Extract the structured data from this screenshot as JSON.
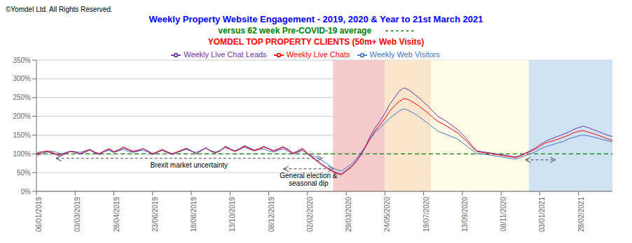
{
  "chart_data": {
    "type": "line",
    "titles": [
      {
        "text": "Weekly Property Website Engagement - 2019, 2020 & Year to 21st March 2021",
        "color": "blue"
      },
      {
        "text": "versus 62 week Pre-COVID-19 average      - - - - - -",
        "color": "green"
      },
      {
        "text": "YOMDEL TOP PROPERTY CLIENTS (50m+ Web Visits)",
        "color": "red"
      }
    ],
    "copyright": "©Yomdel Ltd. All Rights Reserved.",
    "categories": [
      "06/01/2019",
      null,
      null,
      null,
      null,
      null,
      null,
      null,
      "03/03/2019",
      null,
      null,
      null,
      null,
      null,
      null,
      null,
      "28/04/2019",
      null,
      null,
      null,
      null,
      null,
      null,
      null,
      "23/06/2019",
      null,
      null,
      null,
      null,
      null,
      null,
      null,
      "18/08/2019",
      null,
      null,
      null,
      null,
      null,
      null,
      null,
      "13/10/2019",
      null,
      null,
      null,
      null,
      null,
      null,
      null,
      "08/12/2019",
      null,
      null,
      null,
      null,
      null,
      null,
      null,
      "02/02/2020",
      null,
      null,
      null,
      null,
      null,
      null,
      null,
      "29/03/2020",
      null,
      null,
      null,
      null,
      null,
      null,
      null,
      "24/05/2020",
      null,
      null,
      null,
      null,
      null,
      null,
      null,
      "19/07/2020",
      null,
      null,
      null,
      null,
      null,
      null,
      null,
      "13/09/2020",
      null,
      null,
      null,
      null,
      null,
      null,
      null,
      "08/11/2020",
      null,
      null,
      null,
      null,
      null,
      null,
      null,
      "03/01/2021",
      null,
      null,
      null,
      null,
      null,
      null,
      null,
      "28/02/2021",
      null,
      null,
      null,
      null,
      null,
      null,
      null
    ],
    "series": [
      {
        "name": "Weekly Web Visitors",
        "color": "#4472C4",
        "values": [
          102,
          106,
          104,
          108,
          105,
          100,
          103,
          107,
          106,
          104,
          108,
          111,
          104,
          101,
          106,
          109,
          104,
          108,
          112,
          106,
          104,
          107,
          110,
          105,
          101,
          105,
          109,
          103,
          100,
          104,
          108,
          112,
          107,
          104,
          110,
          115,
          108,
          105,
          110,
          117,
          112,
          108,
          112,
          118,
          112,
          108,
          112,
          113,
          108,
          105,
          109,
          113,
          107,
          100,
          104,
          109,
          100,
          95,
          90,
          82,
          74,
          64,
          58,
          54,
          63,
          72,
          85,
          102,
          120,
          140,
          158,
          170,
          182,
          195,
          205,
          215,
          220,
          215,
          208,
          200,
          190,
          180,
          170,
          160,
          155,
          150,
          145,
          140,
          130,
          120,
          110,
          100,
          100,
          98,
          96,
          94,
          92,
          90,
          88,
          86,
          90,
          95,
          100,
          105,
          112,
          118,
          122,
          126,
          130,
          134,
          140,
          144,
          148,
          150,
          148,
          145,
          142,
          138,
          135,
          132
        ]
      },
      {
        "name": "Weekly Live Chats",
        "color": "#FF0000",
        "values": [
          100,
          104,
          108,
          105,
          100,
          97,
          102,
          107,
          105,
          100,
          106,
          112,
          105,
          100,
          108,
          114,
          106,
          111,
          118,
          112,
          107,
          110,
          114,
          108,
          100,
          106,
          112,
          106,
          100,
          105,
          110,
          115,
          108,
          100,
          108,
          116,
          108,
          103,
          108,
          118,
          112,
          106,
          112,
          120,
          114,
          108,
          112,
          118,
          113,
          107,
          112,
          117,
          110,
          100,
          106,
          112,
          100,
          90,
          80,
          70,
          62,
          54,
          48,
          44,
          54,
          64,
          78,
          96,
          118,
          142,
          162,
          178,
          194,
          214,
          228,
          240,
          248,
          244,
          236,
          228,
          218,
          208,
          196,
          186,
          180,
          172,
          164,
          156,
          144,
          132,
          118,
          106,
          104,
          102,
          100,
          98,
          96,
          94,
          92,
          90,
          94,
          100,
          106,
          112,
          120,
          128,
          132,
          136,
          140,
          145,
          150,
          156,
          160,
          162,
          158,
          154,
          150,
          145,
          140,
          136
        ]
      },
      {
        "name": "Weekly Live Chat Leads",
        "color": "#7030A0",
        "values": [
          96,
          100,
          106,
          103,
          98,
          94,
          100,
          106,
          104,
          99,
          104,
          110,
          103,
          98,
          106,
          112,
          104,
          109,
          116,
          110,
          105,
          108,
          114,
          107,
          98,
          104,
          110,
          104,
          98,
          103,
          108,
          114,
          108,
          100,
          108,
          116,
          107,
          102,
          108,
          120,
          114,
          108,
          114,
          122,
          116,
          110,
          114,
          120,
          114,
          109,
          114,
          119,
          112,
          102,
          108,
          115,
          102,
          92,
          82,
          72,
          64,
          56,
          50,
          46,
          56,
          66,
          80,
          98,
          120,
          148,
          170,
          188,
          208,
          232,
          250,
          268,
          276,
          270,
          260,
          250,
          238,
          226,
          212,
          200,
          192,
          184,
          174,
          165,
          152,
          138,
          122,
          108,
          106,
          104,
          102,
          100,
          98,
          96,
          94,
          92,
          96,
          102,
          108,
          115,
          124,
          132,
          138,
          143,
          148,
          153,
          158,
          165,
          170,
          174,
          170,
          165,
          160,
          155,
          150,
          146
        ]
      }
    ],
    "ylim": [
      0,
      350
    ],
    "yticks": [
      {
        "value": 0,
        "label": "0%"
      },
      {
        "value": 50,
        "label": "50%"
      },
      {
        "value": 100,
        "label": "100%"
      },
      {
        "value": 150,
        "label": "150%"
      },
      {
        "value": 200,
        "label": "200%"
      },
      {
        "value": 250,
        "label": "250%"
      },
      {
        "value": 300,
        "label": "300%"
      },
      {
        "value": 350,
        "label": "350%"
      }
    ],
    "grid": true,
    "legend": "top",
    "reference_lines": [
      {
        "y": 100,
        "color": "green",
        "line_style": "dashed"
      }
    ],
    "regions": [
      {
        "x_start": 61.285,
        "x_end": 71.995,
        "color": "#F4CCCC"
      },
      {
        "x_start": 71.995,
        "x_end": 81.515,
        "color": "#FCE5CD"
      },
      {
        "x_start": 81.515,
        "x_end": 101.745,
        "color": "#FFFDE7"
      },
      {
        "x_start": 101.745,
        "x_end": 119,
        "color": "#CFE2F3"
      }
    ],
    "annotations": [
      {
        "text": "Brexit market uncertainty",
        "x_start": 4.165,
        "x_end": 58.905,
        "y": 88
      },
      {
        "text": "General election &\nseasonal dip",
        "x_start": 51.17,
        "x_end": 61.285,
        "y": 60
      },
      {
        "x_start": 101.125,
        "x_end": 107.125,
        "y": 84
      }
    ]
  }
}
